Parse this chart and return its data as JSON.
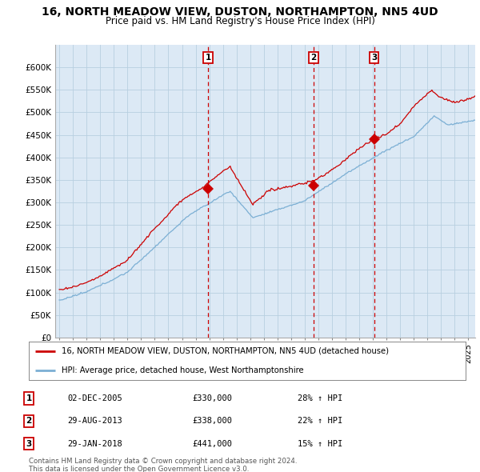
{
  "title": "16, NORTH MEADOW VIEW, DUSTON, NORTHAMPTON, NN5 4UD",
  "subtitle": "Price paid vs. HM Land Registry's House Price Index (HPI)",
  "ylim": [
    0,
    650000
  ],
  "yticks": [
    0,
    50000,
    100000,
    150000,
    200000,
    250000,
    300000,
    350000,
    400000,
    450000,
    500000,
    550000,
    600000
  ],
  "ytick_labels": [
    "£0",
    "£50K",
    "£100K",
    "£150K",
    "£200K",
    "£250K",
    "£300K",
    "£350K",
    "£400K",
    "£450K",
    "£500K",
    "£550K",
    "£600K"
  ],
  "sale_dates": [
    2005.92,
    2013.66,
    2018.08
  ],
  "sale_prices": [
    330000,
    338000,
    441000
  ],
  "sale_labels": [
    "1",
    "2",
    "3"
  ],
  "sale_color": "#cc0000",
  "hpi_color": "#7bafd4",
  "vline_color": "#cc0000",
  "chart_bg": "#dce9f5",
  "background_color": "#ffffff",
  "grid_color": "#b8cfe0",
  "legend_label_red": "16, NORTH MEADOW VIEW, DUSTON, NORTHAMPTON, NN5 4UD (detached house)",
  "legend_label_blue": "HPI: Average price, detached house, West Northamptonshire",
  "table_rows": [
    [
      "1",
      "02-DEC-2005",
      "£330,000",
      "28% ↑ HPI"
    ],
    [
      "2",
      "29-AUG-2013",
      "£338,000",
      "22% ↑ HPI"
    ],
    [
      "3",
      "29-JAN-2018",
      "£441,000",
      "15% ↑ HPI"
    ]
  ],
  "footnote": "Contains HM Land Registry data © Crown copyright and database right 2024.\nThis data is licensed under the Open Government Licence v3.0.",
  "title_fontsize": 10,
  "subtitle_fontsize": 8.5
}
